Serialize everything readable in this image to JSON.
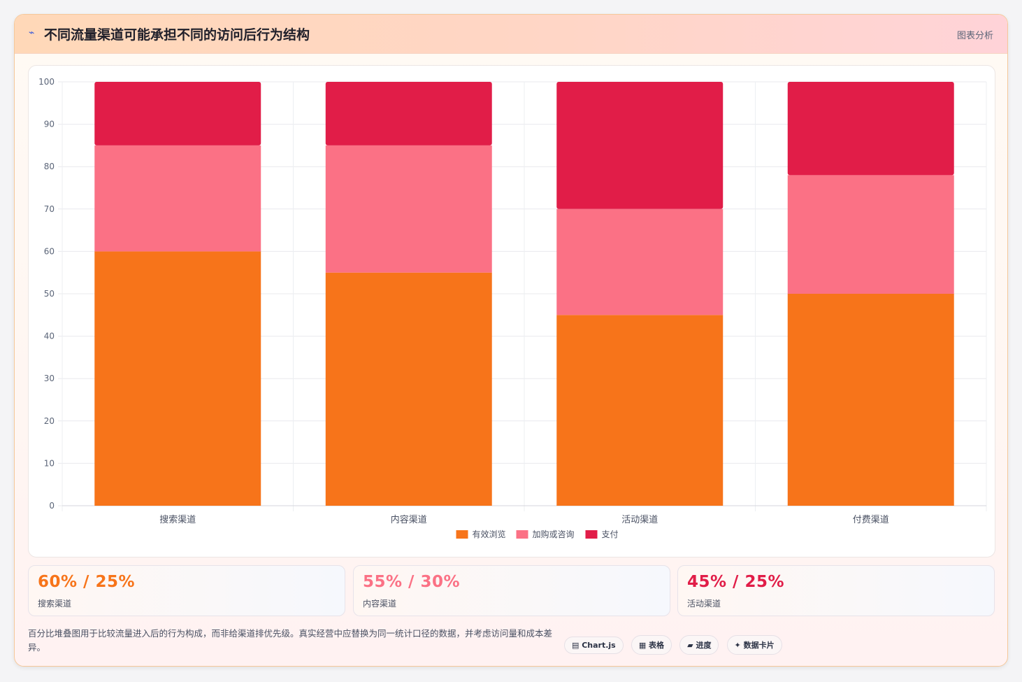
{
  "header": {
    "logo_glyph": "⌁",
    "title": "不同流量渠道可能承担不同的访问后行为结构",
    "tag": "图表分析"
  },
  "colors": {
    "orange": "#f7741a",
    "pink": "#fb7185",
    "crimson": "#e11d48"
  },
  "chart_data": {
    "type": "bar",
    "stacked": true,
    "categories": [
      "搜索渠道",
      "内容渠道",
      "活动渠道",
      "付费渠道"
    ],
    "series": [
      {
        "name": "有效浏览",
        "color": "#f7741a",
        "values": [
          60,
          55,
          45,
          50
        ]
      },
      {
        "name": "加购或咨询",
        "color": "#fb7185",
        "values": [
          25,
          30,
          25,
          28
        ]
      },
      {
        "name": "支付",
        "color": "#e11d48",
        "values": [
          15,
          15,
          30,
          22
        ]
      }
    ],
    "ylim": [
      0,
      100
    ],
    "yticks": [
      0,
      10,
      20,
      30,
      40,
      50,
      60,
      70,
      80,
      90,
      100
    ],
    "grid": true,
    "legend": "bottom"
  },
  "stats": [
    {
      "value": "60% / 25%",
      "label": "搜索渠道",
      "color": "#f7741a"
    },
    {
      "value": "55% / 30%",
      "label": "内容渠道",
      "color": "#fb7185"
    },
    {
      "value": "45% / 25%",
      "label": "活动渠道",
      "color": "#e11d48"
    }
  ],
  "footer": {
    "note": "百分比堆叠图用于比较流量进入后的行为构成，而非给渠道排优先级。真实经营中应替换为同一统计口径的数据，并考虑访问量和成本差异。",
    "pills": [
      "▤ Chart.js",
      "▦ 表格",
      "▰ 进度",
      "✦ 数据卡片"
    ]
  }
}
